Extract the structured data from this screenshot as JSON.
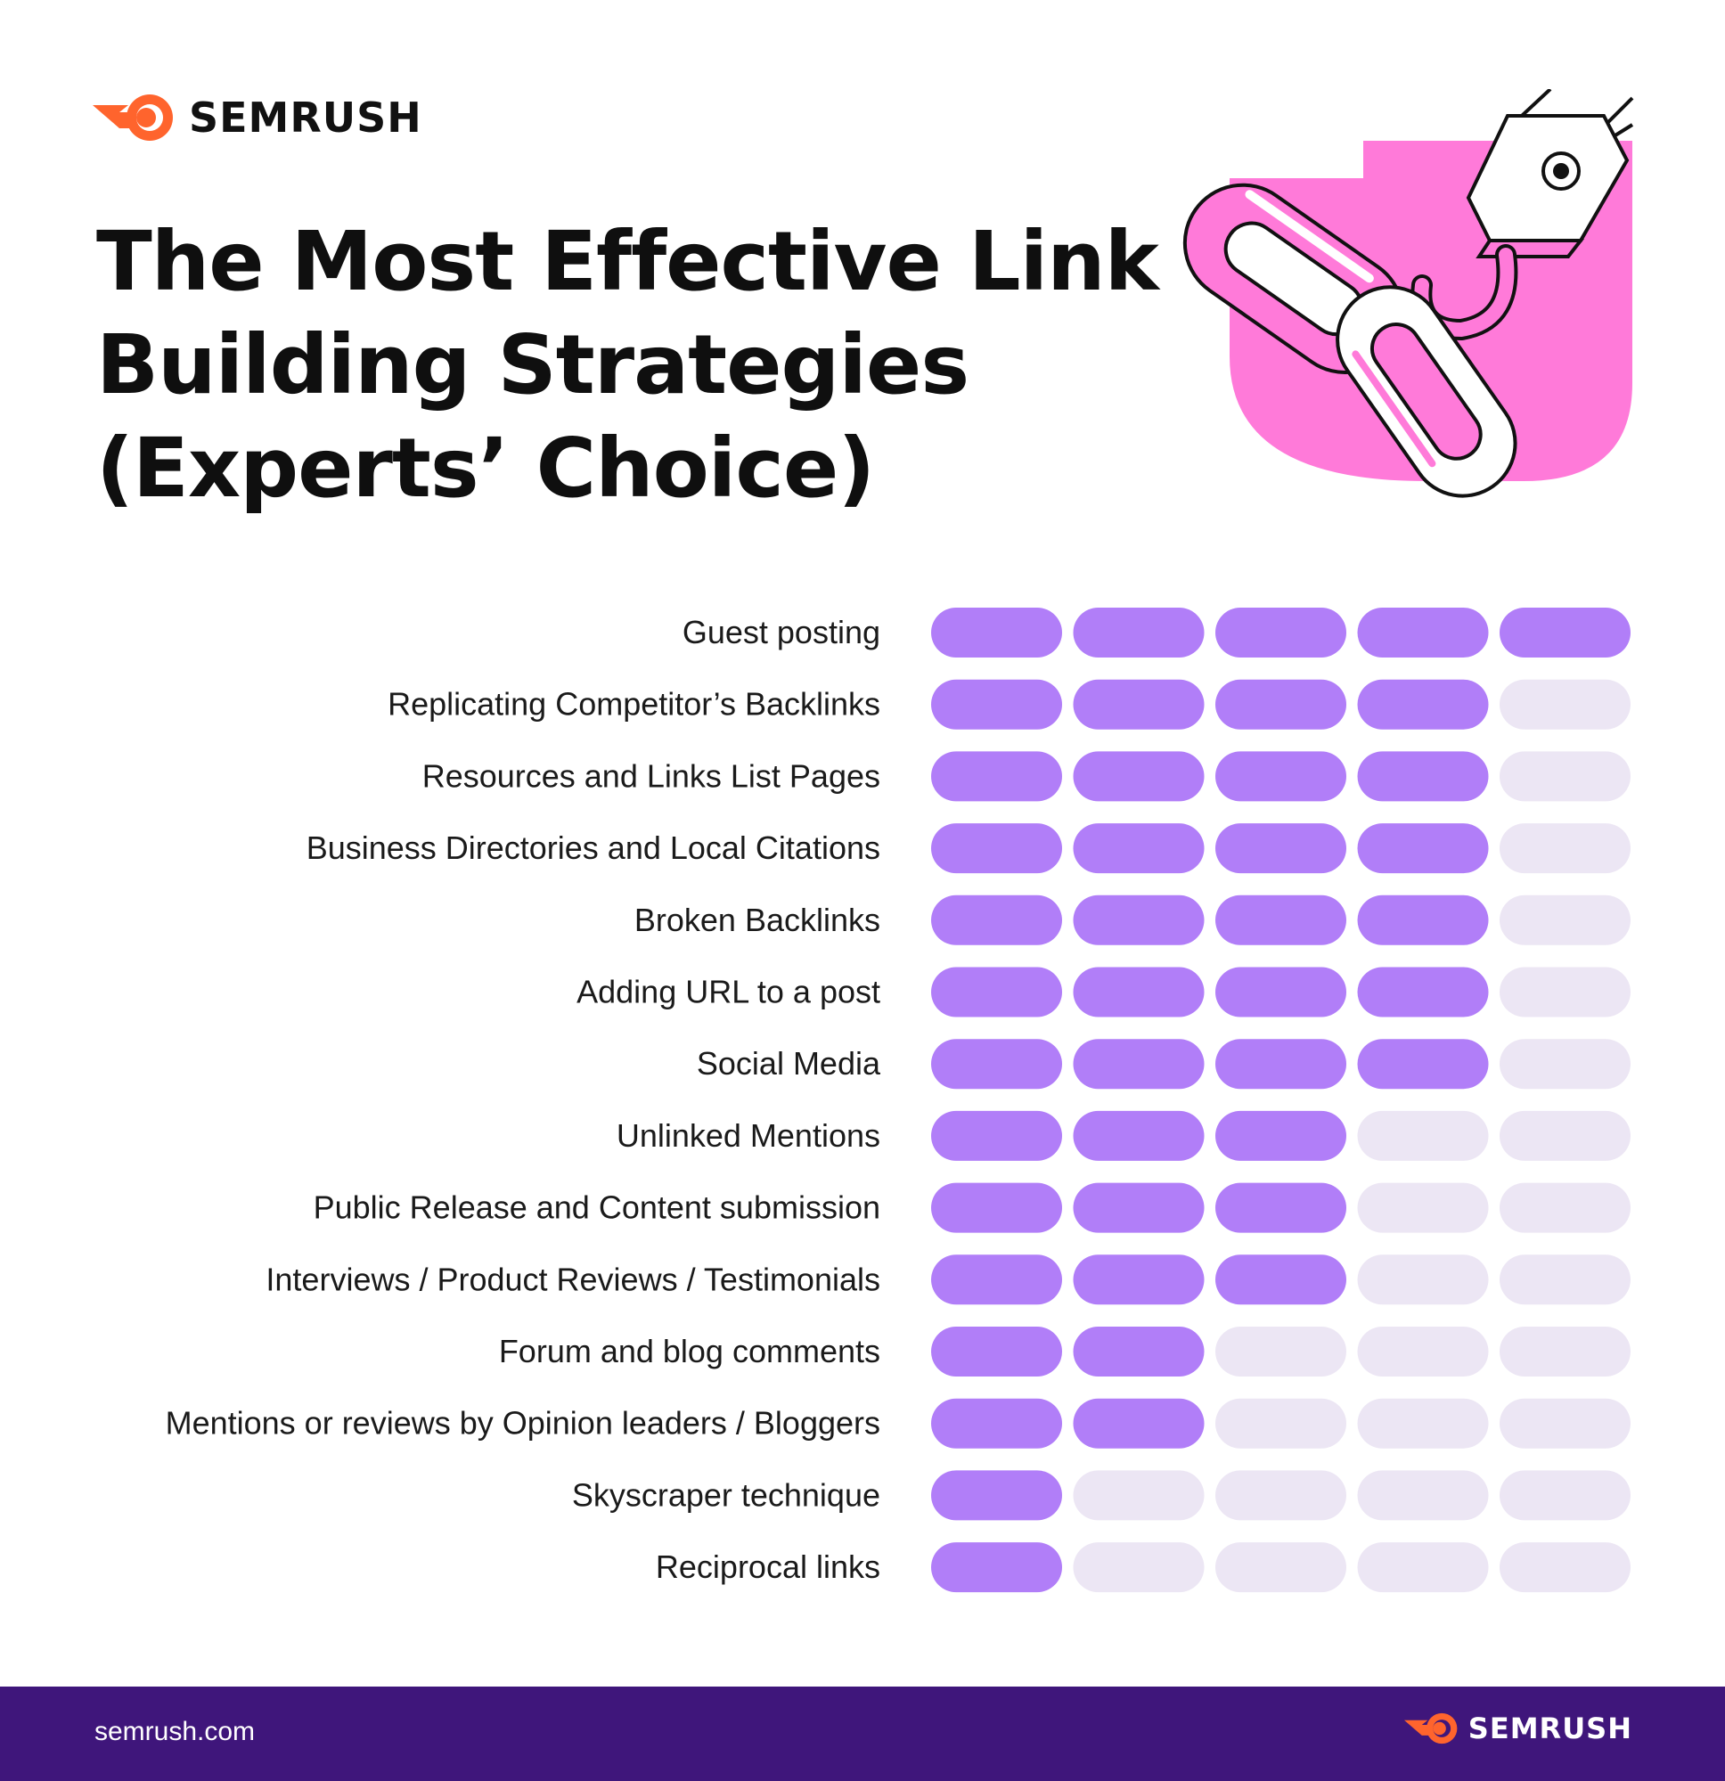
{
  "brand": {
    "name": "SEMRUSH",
    "url": "semrush.com",
    "accent_color": "#ff642d",
    "footer_color": "#3f167b"
  },
  "header": {
    "title_lines": [
      "The Most Effective Link",
      "Building Strategies",
      "(Experts’ Choice)"
    ]
  },
  "chart_data": {
    "type": "table",
    "title": "The Most Effective Link Building Strategies (Experts’ Choice)",
    "scale_max": 5,
    "filled_color": "#b17ef8",
    "empty_color": "#ece6f4",
    "categories": [
      "Guest posting",
      "Replicating Competitor’s Backlinks",
      "Resources and Links List Pages",
      "Business Directories and Local Citations",
      "Broken Backlinks",
      "Adding URL to a post",
      "Social Media",
      "Unlinked Mentions",
      "Public Release and Content submission",
      "Interviews / Product Reviews / Testimonials",
      "Forum and blog comments",
      "Mentions or reviews by Opinion leaders / Bloggers",
      "Skyscraper technique",
      "Reciprocal links"
    ],
    "values": [
      5,
      4,
      4,
      4,
      4,
      4,
      4,
      3,
      3,
      3,
      2,
      2,
      1,
      1
    ]
  }
}
